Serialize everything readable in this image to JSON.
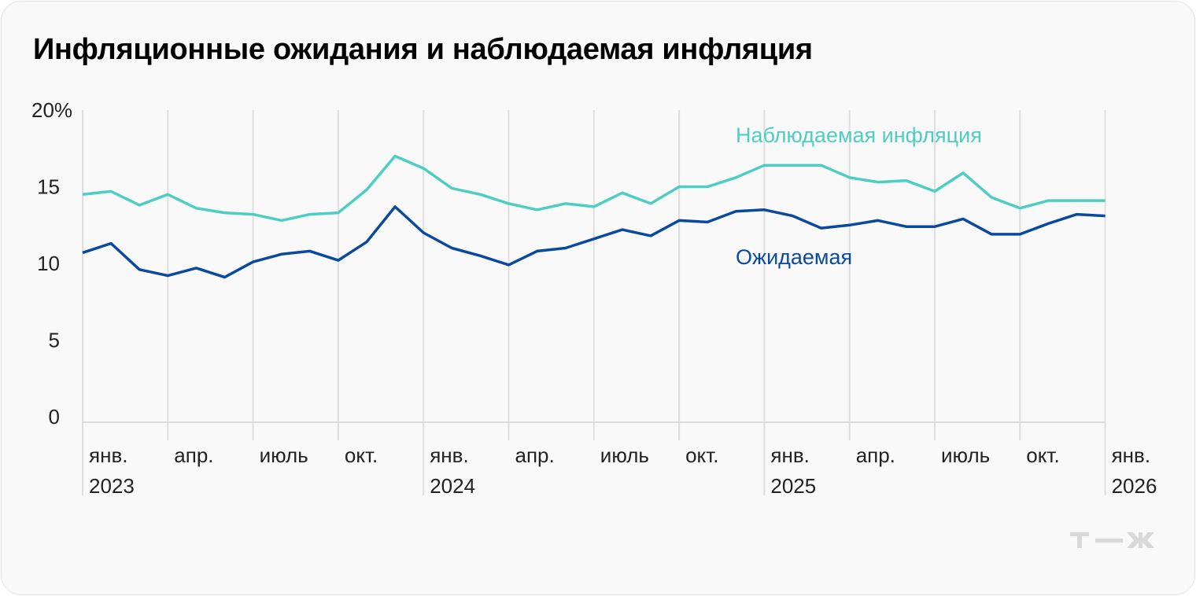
{
  "title": "Инфляционные ожидания и наблюдаемая инфляция",
  "logo": "т—ж",
  "chart_data": {
    "type": "line",
    "title": "Инфляционные ожидания и наблюдаемая инфляция",
    "ylim": [
      0,
      20
    ],
    "y_ticks": [
      "20%",
      "15",
      "10",
      "5",
      "0"
    ],
    "y_tick_values": [
      20,
      15,
      10,
      5,
      0
    ],
    "grid": "vertical, quarterly",
    "x_start": "2023-01",
    "x_ticks": [
      {
        "month": "янв.",
        "year": "2023"
      },
      {
        "month": "апр.",
        "year": ""
      },
      {
        "month": "июль",
        "year": ""
      },
      {
        "month": "окт.",
        "year": ""
      },
      {
        "month": "янв.",
        "year": "2024"
      },
      {
        "month": "апр.",
        "year": ""
      },
      {
        "month": "июль",
        "year": ""
      },
      {
        "month": "окт.",
        "year": ""
      },
      {
        "month": "янв.",
        "year": "2025"
      },
      {
        "month": "апр.",
        "year": ""
      },
      {
        "month": "июль",
        "year": ""
      },
      {
        "month": "окт.",
        "year": ""
      },
      {
        "month": "янв.",
        "year": "2026"
      }
    ],
    "series": [
      {
        "name": "Наблюдаемая инфляция",
        "color": "#4ecdc4",
        "values": [
          14.5,
          14.7,
          13.8,
          14.5,
          13.6,
          13.3,
          13.2,
          12.8,
          13.2,
          13.3,
          14.8,
          17.0,
          16.2,
          14.9,
          14.5,
          13.9,
          13.5,
          13.9,
          13.7,
          14.6,
          13.9,
          15.0,
          15.0,
          15.6,
          16.4,
          16.4,
          16.4,
          15.6,
          15.3,
          15.4,
          14.7,
          15.9,
          14.3,
          13.6,
          14.1,
          14.1,
          14.1
        ]
      },
      {
        "name": "Ожидаемая",
        "color": "#0a4a9e",
        "values": [
          10.7,
          11.3,
          9.6,
          9.2,
          9.7,
          9.1,
          10.1,
          10.6,
          10.8,
          10.2,
          11.4,
          13.7,
          12.0,
          11.0,
          10.5,
          9.9,
          10.8,
          11.0,
          11.6,
          12.2,
          11.8,
          12.8,
          12.7,
          13.4,
          13.5,
          13.1,
          12.3,
          12.5,
          12.8,
          12.4,
          12.4,
          12.9,
          11.9,
          11.9,
          12.6,
          13.2,
          13.1
        ]
      }
    ]
  }
}
